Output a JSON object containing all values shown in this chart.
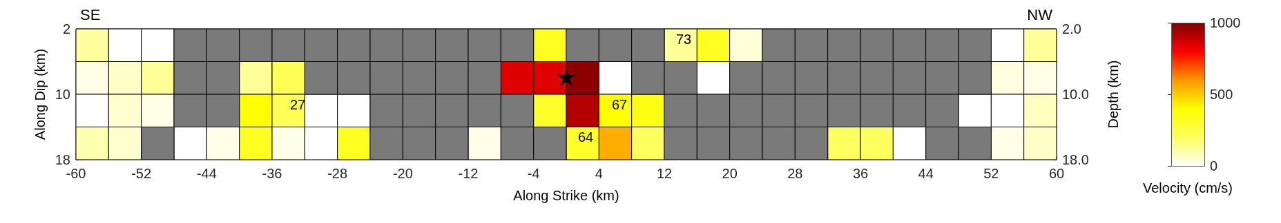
{
  "chart_data": {
    "type": "heatmap",
    "xlabel": "Along Strike (km)",
    "ylabel": "Along Dip (km)",
    "y2label": "Depth (km)",
    "clabel": "Velocity (cm/s)",
    "x": [
      -58,
      -54,
      -50,
      -46,
      -42,
      -38,
      -34,
      -30,
      -26,
      -22,
      -18,
      -14,
      -10,
      -6,
      -2,
      2,
      6,
      10,
      14,
      18,
      22,
      26,
      30,
      34,
      38,
      42,
      46,
      50,
      54,
      58
    ],
    "y": [
      4,
      8,
      12,
      16
    ],
    "xlim": [
      -60,
      60
    ],
    "xticks": [
      -60,
      -52,
      -44,
      -36,
      -28,
      -20,
      -12,
      -4,
      4,
      12,
      20,
      28,
      36,
      44,
      52,
      60
    ],
    "ylim": [
      18,
      2
    ],
    "yticks": [
      2,
      10,
      18
    ],
    "y2lim": [
      18,
      2
    ],
    "y2ticks": [
      {
        "value": 2,
        "label": "2.0"
      },
      {
        "value": 10,
        "label": "10.0"
      },
      {
        "value": 18,
        "label": "18.0"
      }
    ],
    "cells": [
      [
        120,
        0,
        0,
        null,
        null,
        null,
        null,
        null,
        null,
        null,
        null,
        null,
        null,
        null,
        330,
        null,
        null,
        null,
        130,
        330,
        50,
        null,
        null,
        null,
        null,
        null,
        null,
        null,
        0,
        130
      ],
      [
        30,
        70,
        130,
        null,
        null,
        130,
        220,
        null,
        null,
        null,
        null,
        null,
        null,
        850,
        850,
        980,
        0,
        null,
        null,
        0,
        null,
        null,
        null,
        null,
        null,
        null,
        null,
        null,
        40,
        30
      ],
      [
        0,
        60,
        30,
        null,
        null,
        400,
        220,
        0,
        0,
        null,
        null,
        null,
        null,
        null,
        310,
        920,
        400,
        360,
        null,
        null,
        null,
        null,
        null,
        null,
        null,
        null,
        null,
        0,
        0,
        80
      ],
      [
        100,
        60,
        null,
        0,
        30,
        330,
        30,
        0,
        330,
        null,
        null,
        null,
        30,
        null,
        null,
        310,
        560,
        200,
        null,
        null,
        null,
        null,
        null,
        200,
        200,
        0,
        null,
        null,
        30,
        70
      ]
    ],
    "clim": [
      0,
      1000
    ],
    "cticks": [
      0,
      500,
      1000
    ],
    "annotations": [
      "SE",
      "NW",
      "27",
      "73",
      "67",
      "64"
    ]
  }
}
